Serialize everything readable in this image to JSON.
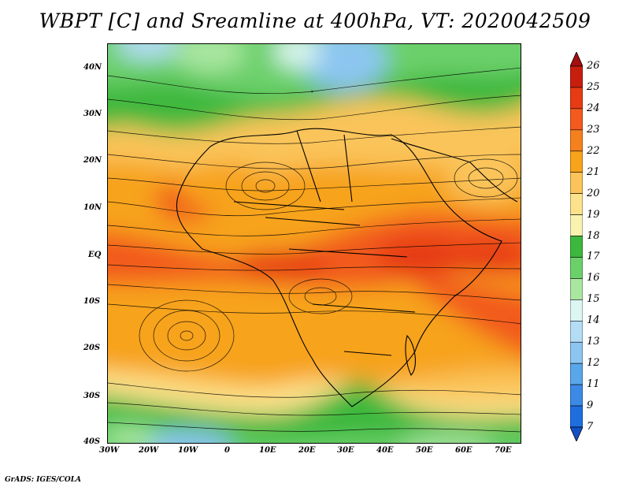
{
  "title": "WBPT [C] and Sreamline at 400hPa, VT: 2020042509",
  "credit": "GrADS: IGES/COLA",
  "map": {
    "lon_range": [
      -30,
      75
    ],
    "lat_range": [
      -40,
      45
    ],
    "lon_ticks": [
      "30W",
      "20W",
      "10W",
      "0",
      "10E",
      "20E",
      "30E",
      "40E",
      "50E",
      "60E",
      "70E"
    ],
    "lat_ticks": [
      "40N",
      "30N",
      "20N",
      "10N",
      "EQ",
      "10S",
      "20S",
      "30S",
      "40S"
    ],
    "variable": "Wet-bulb potential temperature with streamlines",
    "level": "400hPa",
    "valid_time": "2020042509"
  },
  "colorbar": {
    "labels": [
      "26",
      "25",
      "24",
      "23",
      "22",
      "21",
      "20",
      "19",
      "18",
      "17",
      "16",
      "15",
      "14",
      "13",
      "12",
      "11",
      "9",
      "7"
    ],
    "colors": [
      "#a50f0f",
      "#c81e0e",
      "#e63b14",
      "#f25a1e",
      "#f5801e",
      "#f7a31c",
      "#fac45a",
      "#fde28c",
      "#f9f3b0",
      "#3cb83c",
      "#6cd06a",
      "#a9e6a0",
      "#dcf6f2",
      "#b4dcf5",
      "#8cc6f0",
      "#5aa6ea",
      "#3c8ae6",
      "#1e6ee0",
      "#1250c8"
    ]
  }
}
